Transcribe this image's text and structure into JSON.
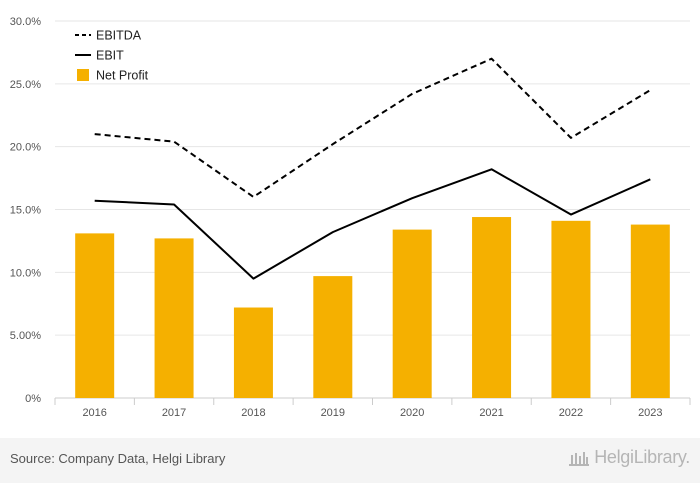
{
  "chart_data": {
    "type": "bar",
    "title": "",
    "xlabel": "",
    "ylabel": "",
    "categories": [
      "2016",
      "2017",
      "2018",
      "2019",
      "2020",
      "2021",
      "2022",
      "2023"
    ],
    "y_ticks": [
      "0%",
      "5.00%",
      "10.0%",
      "15.0%",
      "20.0%",
      "25.0%",
      "30.0%"
    ],
    "ylim": [
      0,
      30
    ],
    "grid": true,
    "legend_position": "top-left",
    "series": [
      {
        "name": "EBITDA",
        "kind": "line",
        "style": "dashed",
        "color": "#000000",
        "values": [
          21.0,
          20.4,
          16.0,
          20.2,
          24.2,
          27.0,
          20.7,
          24.5
        ]
      },
      {
        "name": "EBIT",
        "kind": "line",
        "style": "solid",
        "color": "#000000",
        "values": [
          15.7,
          15.4,
          9.5,
          13.2,
          15.9,
          18.2,
          14.6,
          17.4
        ]
      },
      {
        "name": "Net Profit",
        "kind": "bar",
        "color": "#f5b000",
        "values": [
          13.1,
          12.7,
          7.2,
          9.7,
          13.4,
          14.4,
          14.1,
          13.8
        ]
      }
    ]
  },
  "footer": {
    "source": "Source: Company Data, Helgi Library",
    "logo_text": "HelgiLibrary."
  },
  "colors": {
    "bar": "#f5b000",
    "grid": "#e6e6e6",
    "footer_bg": "#f4f4f4"
  }
}
